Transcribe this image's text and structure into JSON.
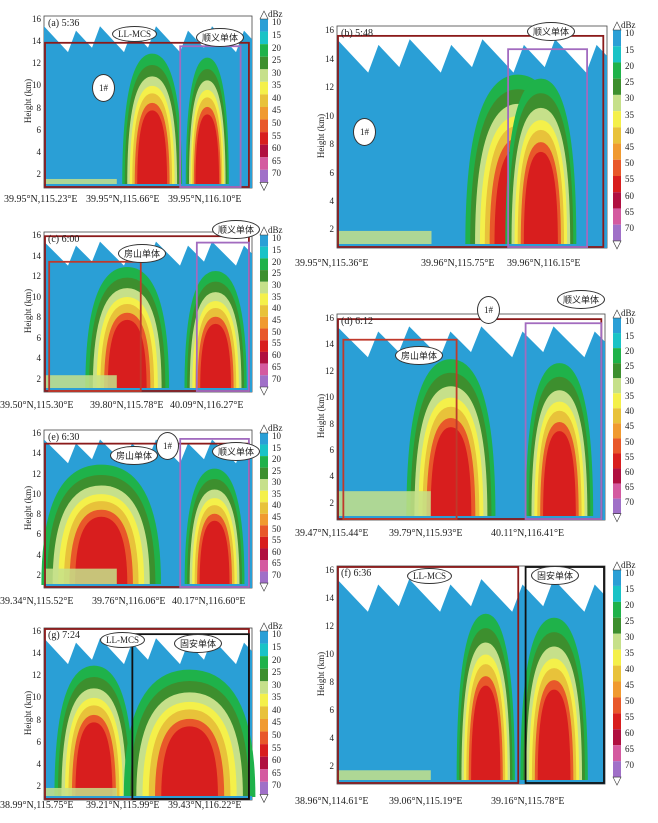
{
  "colorbar": {
    "unit": "dBz",
    "levels": [
      "10",
      "15",
      "20",
      "25",
      "30",
      "35",
      "40",
      "45",
      "50",
      "55",
      "60",
      "65",
      "70"
    ],
    "colors": [
      "#2a9fd6",
      "#19c3c6",
      "#1fb24a",
      "#3d8f2e",
      "#c6e08a",
      "#f4f04a",
      "#e8c23a",
      "#f09a30",
      "#e8582a",
      "#d81e1e",
      "#b01040",
      "#d45aa0",
      "#a070c8"
    ]
  },
  "panels": [
    {
      "id": "a",
      "title": "(a) 5:36",
      "ylabel": "Height (km)",
      "yticks": [
        "16",
        "14",
        "12",
        "10",
        "8",
        "6",
        "4",
        "2"
      ],
      "xlabels": [
        "39.95°N,115.23°E",
        "39.95°N,115.66°E",
        "39.95°N,116.10°E"
      ],
      "annotations": [
        "LL-MCS",
        "顺义单体",
        "1#"
      ]
    },
    {
      "id": "b",
      "title": "(b) 5:48",
      "ylabel": "Height (km)",
      "yticks": [
        "16",
        "14",
        "12",
        "10",
        "8",
        "6",
        "4",
        "2"
      ],
      "xlabels": [
        "39.95°N,115.36°E",
        "39.96°N,115.75°E",
        "39.96°N,116.15°E"
      ],
      "annotations": [
        "顺义单体",
        "1#"
      ]
    },
    {
      "id": "c",
      "title": "(c) 6:00",
      "ylabel": "Height (km)",
      "yticks": [
        "16",
        "14",
        "12",
        "10",
        "8",
        "6",
        "4",
        "2"
      ],
      "xlabels": [
        "39.50°N,115.30°E",
        "39.80°N,115.78°E",
        "40.09°N,116.27°E"
      ],
      "annotations": [
        "房山单体",
        "顺义单体"
      ]
    },
    {
      "id": "d",
      "title": "(d) 6:12",
      "ylabel": "Height (km)",
      "yticks": [
        "16",
        "14",
        "12",
        "10",
        "8",
        "6",
        "4",
        "2"
      ],
      "xlabels": [
        "39.47°N,115.44°E",
        "39.79°N,115.93°E",
        "40.11°N,116.41°E"
      ],
      "annotations": [
        "顺义单体",
        "房山单体",
        "1#"
      ]
    },
    {
      "id": "e",
      "title": "(e) 6:30",
      "ylabel": "Height (km)",
      "yticks": [
        "16",
        "14",
        "12",
        "10",
        "8",
        "6",
        "4",
        "2"
      ],
      "xlabels": [
        "39.34°N,115.52°E",
        "39.76°N,116.06°E",
        "40.17°N,116.60°E"
      ],
      "annotations": [
        "房山单体",
        "1#",
        "顺义单体"
      ]
    },
    {
      "id": "f",
      "title": "(f) 6:36",
      "ylabel": "Height (km)",
      "yticks": [
        "16",
        "14",
        "12",
        "10",
        "8",
        "6",
        "4",
        "2"
      ],
      "xlabels": [
        "38.96°N,114.61°E",
        "39.06°N,115.19°E",
        "39.16°N,115.78°E"
      ],
      "annotations": [
        "LL-MCS",
        "固安单体"
      ]
    },
    {
      "id": "g",
      "title": "(g) 7:24",
      "ylabel": "Height (km)",
      "yticks": [
        "16",
        "14",
        "12",
        "10",
        "8",
        "6",
        "4",
        "2"
      ],
      "xlabels": [
        "38.99°N,115.75°E",
        "39.21°N,115.99°E",
        "39.43°N,116.22°E"
      ],
      "annotations": [
        "LL-MCS",
        "固安单体"
      ]
    }
  ]
}
